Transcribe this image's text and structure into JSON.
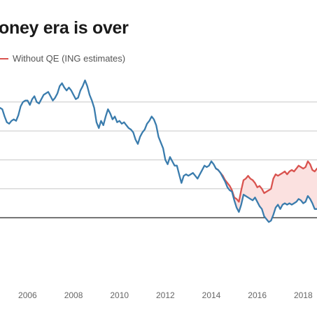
{
  "title": "oney era is over",
  "colors": {
    "with_qe": "#3a7cad",
    "without_qe": "#d9534f",
    "band": "#fbe1e0",
    "grid": "#c8c8c8",
    "baseline": "#222222"
  },
  "chart_data": {
    "type": "line",
    "title": "oney era is over",
    "legend": {
      "placement": "top-left",
      "entries": [
        "Without QE (ING estimates)"
      ]
    },
    "xlabel": "",
    "ylabel": "",
    "xlim": [
      2004.8,
      2018.6
    ],
    "ylim": [
      -2.15,
      5.35
    ],
    "grid": true,
    "x_ticks": [
      2006,
      2008,
      2010,
      2012,
      2014,
      2016,
      2018
    ],
    "x_tick_labels": [
      "2006",
      "2008",
      "2010",
      "2012",
      "2014",
      "2016",
      "2018"
    ],
    "y_gridlines": [
      0,
      1,
      2,
      3,
      4
    ],
    "series": [
      {
        "key": "with_qe",
        "points": [
          [
            2004.8,
            3.8
          ],
          [
            2004.9,
            3.75
          ],
          [
            2005.0,
            3.5
          ],
          [
            2005.1,
            3.3
          ],
          [
            2005.2,
            3.25
          ],
          [
            2005.3,
            3.35
          ],
          [
            2005.4,
            3.4
          ],
          [
            2005.5,
            3.35
          ],
          [
            2005.6,
            3.55
          ],
          [
            2005.7,
            3.85
          ],
          [
            2005.8,
            4.0
          ],
          [
            2005.9,
            4.05
          ],
          [
            2006.0,
            4.05
          ],
          [
            2006.1,
            3.9
          ],
          [
            2006.2,
            4.1
          ],
          [
            2006.3,
            4.2
          ],
          [
            2006.4,
            4.0
          ],
          [
            2006.5,
            3.95
          ],
          [
            2006.6,
            4.1
          ],
          [
            2006.7,
            4.25
          ],
          [
            2006.8,
            4.3
          ],
          [
            2006.9,
            4.35
          ],
          [
            2007.0,
            4.2
          ],
          [
            2007.1,
            4.05
          ],
          [
            2007.2,
            4.15
          ],
          [
            2007.3,
            4.3
          ],
          [
            2007.4,
            4.55
          ],
          [
            2007.5,
            4.65
          ],
          [
            2007.6,
            4.5
          ],
          [
            2007.7,
            4.4
          ],
          [
            2007.8,
            4.5
          ],
          [
            2007.9,
            4.4
          ],
          [
            2008.0,
            4.25
          ],
          [
            2008.1,
            4.1
          ],
          [
            2008.2,
            4.15
          ],
          [
            2008.3,
            4.4
          ],
          [
            2008.4,
            4.55
          ],
          [
            2008.5,
            4.75
          ],
          [
            2008.6,
            4.55
          ],
          [
            2008.7,
            4.25
          ],
          [
            2008.8,
            4.05
          ],
          [
            2008.9,
            3.8
          ],
          [
            2009.0,
            3.3
          ],
          [
            2009.1,
            3.1
          ],
          [
            2009.2,
            3.35
          ],
          [
            2009.3,
            3.2
          ],
          [
            2009.4,
            3.5
          ],
          [
            2009.5,
            3.75
          ],
          [
            2009.6,
            3.6
          ],
          [
            2009.7,
            3.4
          ],
          [
            2009.8,
            3.5
          ],
          [
            2009.9,
            3.3
          ],
          [
            2010.0,
            3.35
          ],
          [
            2010.1,
            3.25
          ],
          [
            2010.2,
            3.3
          ],
          [
            2010.3,
            3.2
          ],
          [
            2010.4,
            3.1
          ],
          [
            2010.5,
            3.05
          ],
          [
            2010.6,
            2.95
          ],
          [
            2010.7,
            2.7
          ],
          [
            2010.8,
            2.55
          ],
          [
            2010.9,
            2.8
          ],
          [
            2011.0,
            2.95
          ],
          [
            2011.1,
            3.05
          ],
          [
            2011.2,
            3.25
          ],
          [
            2011.3,
            3.35
          ],
          [
            2011.4,
            3.5
          ],
          [
            2011.5,
            3.4
          ],
          [
            2011.6,
            3.2
          ],
          [
            2011.7,
            2.8
          ],
          [
            2011.8,
            2.6
          ],
          [
            2011.9,
            2.4
          ],
          [
            2012.0,
            2.0
          ],
          [
            2012.1,
            1.85
          ],
          [
            2012.2,
            2.1
          ],
          [
            2012.3,
            1.95
          ],
          [
            2012.4,
            1.8
          ],
          [
            2012.5,
            1.8
          ],
          [
            2012.6,
            1.5
          ],
          [
            2012.7,
            1.2
          ],
          [
            2012.8,
            1.45
          ],
          [
            2012.9,
            1.5
          ],
          [
            2013.0,
            1.45
          ],
          [
            2013.1,
            1.5
          ],
          [
            2013.2,
            1.55
          ],
          [
            2013.3,
            1.45
          ],
          [
            2013.4,
            1.35
          ],
          [
            2013.5,
            1.5
          ],
          [
            2013.6,
            1.65
          ],
          [
            2013.7,
            1.8
          ],
          [
            2013.8,
            1.75
          ],
          [
            2013.9,
            1.8
          ],
          [
            2014.0,
            1.95
          ],
          [
            2014.1,
            1.85
          ],
          [
            2014.2,
            1.7
          ],
          [
            2014.3,
            1.65
          ],
          [
            2014.4,
            1.55
          ],
          [
            2014.5,
            1.4
          ],
          [
            2014.6,
            1.25
          ],
          [
            2014.7,
            1.05
          ],
          [
            2014.8,
            0.95
          ],
          [
            2014.9,
            0.9
          ],
          [
            2015.0,
            0.6
          ],
          [
            2015.1,
            0.35
          ],
          [
            2015.2,
            0.2
          ],
          [
            2015.3,
            0.45
          ],
          [
            2015.4,
            0.8
          ],
          [
            2015.5,
            0.75
          ],
          [
            2015.6,
            0.7
          ],
          [
            2015.7,
            0.65
          ],
          [
            2015.8,
            0.6
          ],
          [
            2015.9,
            0.7
          ],
          [
            2016.0,
            0.55
          ],
          [
            2016.1,
            0.4
          ],
          [
            2016.2,
            0.3
          ],
          [
            2016.3,
            0.05
          ],
          [
            2016.4,
            -0.05
          ],
          [
            2016.5,
            -0.15
          ],
          [
            2016.6,
            -0.1
          ],
          [
            2016.7,
            0.1
          ],
          [
            2016.8,
            0.35
          ],
          [
            2016.9,
            0.45
          ],
          [
            2017.0,
            0.3
          ],
          [
            2017.1,
            0.45
          ],
          [
            2017.2,
            0.5
          ],
          [
            2017.3,
            0.45
          ],
          [
            2017.4,
            0.5
          ],
          [
            2017.5,
            0.45
          ],
          [
            2017.6,
            0.5
          ],
          [
            2017.7,
            0.55
          ],
          [
            2017.8,
            0.65
          ],
          [
            2017.9,
            0.6
          ],
          [
            2018.0,
            0.5
          ],
          [
            2018.1,
            0.55
          ],
          [
            2018.2,
            0.75
          ],
          [
            2018.3,
            0.65
          ],
          [
            2018.4,
            0.5
          ],
          [
            2018.5,
            0.3
          ],
          [
            2018.6,
            0.3
          ]
        ]
      },
      {
        "key": "without_qe",
        "name": "Without QE (ING estimates)",
        "points": [
          [
            2014.2,
            1.7
          ],
          [
            2014.3,
            1.65
          ],
          [
            2014.4,
            1.55
          ],
          [
            2014.5,
            1.45
          ],
          [
            2014.6,
            1.3
          ],
          [
            2014.7,
            1.2
          ],
          [
            2014.8,
            1.1
          ],
          [
            2014.9,
            0.95
          ],
          [
            2015.0,
            0.7
          ],
          [
            2015.1,
            0.65
          ],
          [
            2015.2,
            0.55
          ],
          [
            2015.3,
            0.95
          ],
          [
            2015.4,
            1.3
          ],
          [
            2015.5,
            1.35
          ],
          [
            2015.6,
            1.45
          ],
          [
            2015.7,
            1.35
          ],
          [
            2015.8,
            1.3
          ],
          [
            2015.9,
            1.2
          ],
          [
            2016.0,
            1.05
          ],
          [
            2016.1,
            1.1
          ],
          [
            2016.2,
            1.0
          ],
          [
            2016.3,
            0.85
          ],
          [
            2016.4,
            0.9
          ],
          [
            2016.5,
            0.95
          ],
          [
            2016.6,
            1.0
          ],
          [
            2016.7,
            1.35
          ],
          [
            2016.8,
            1.5
          ],
          [
            2016.9,
            1.45
          ],
          [
            2017.0,
            1.5
          ],
          [
            2017.1,
            1.55
          ],
          [
            2017.2,
            1.6
          ],
          [
            2017.3,
            1.5
          ],
          [
            2017.4,
            1.6
          ],
          [
            2017.5,
            1.65
          ],
          [
            2017.6,
            1.6
          ],
          [
            2017.7,
            1.7
          ],
          [
            2017.8,
            1.8
          ],
          [
            2017.9,
            1.75
          ],
          [
            2018.0,
            1.7
          ],
          [
            2018.1,
            1.75
          ],
          [
            2018.2,
            1.95
          ],
          [
            2018.3,
            1.85
          ],
          [
            2018.4,
            1.65
          ],
          [
            2018.5,
            1.6
          ],
          [
            2018.6,
            1.7
          ]
        ]
      }
    ]
  }
}
